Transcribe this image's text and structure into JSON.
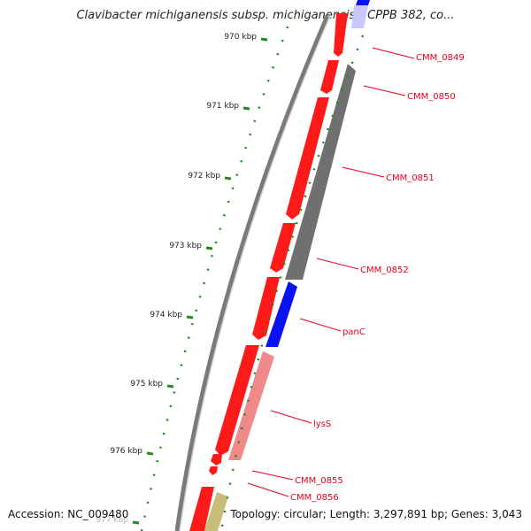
{
  "title": "Clavibacter michiganensis subsp. michiganensis NCPPB 382, co...",
  "accession": "Accession: NC_009480",
  "topology": "Topology: circular; Length: 3,297,891 bp; Genes: 3,043",
  "ruler": {
    "unit": "kbp",
    "ticks": [
      {
        "kbp": 970,
        "label": "970 kbp"
      },
      {
        "kbp": 971,
        "label": "971 kbp"
      },
      {
        "kbp": 972,
        "label": "972 kbp"
      },
      {
        "kbp": 973,
        "label": "973 kbp"
      },
      {
        "kbp": 974,
        "label": "974 kbp"
      },
      {
        "kbp": 975,
        "label": "975 kbp"
      },
      {
        "kbp": 976,
        "label": "976 kbp"
      },
      {
        "kbp": 977,
        "label": "977 kbp"
      }
    ]
  },
  "colors": {
    "backbone": "#7a7a7a",
    "forward_cds": "#ff1a1a",
    "reverse_gray": "#707070",
    "reverse_blue": "#0a12f0",
    "reverse_pink": "#f08a8a",
    "reverse_khaki": "#c8bd78",
    "label": "#e8001c",
    "tick": "#1f8a1f"
  },
  "genes": [
    {
      "label": "CMM_0849"
    },
    {
      "label": "CMM_0850"
    },
    {
      "label": "CMM_0851"
    },
    {
      "label": "CMM_0852"
    },
    {
      "label": "panC"
    },
    {
      "label": "lysS"
    },
    {
      "label": "CMM_0855"
    },
    {
      "label": "CMM_0856"
    }
  ]
}
